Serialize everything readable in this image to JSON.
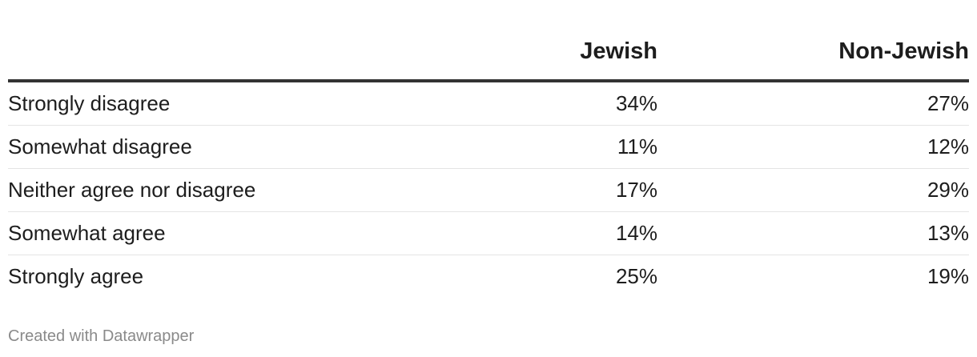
{
  "chart_data": {
    "type": "table",
    "columns": [
      "",
      "Jewish",
      "Non-Jewish"
    ],
    "rows": [
      {
        "label": "Strongly disagree",
        "jewish": "34%",
        "non_jewish": "27%"
      },
      {
        "label": "Somewhat disagree",
        "jewish": "11%",
        "non_jewish": "12%"
      },
      {
        "label": "Neither agree nor disagree",
        "jewish": "17%",
        "non_jewish": "29%"
      },
      {
        "label": "Somewhat agree",
        "jewish": "14%",
        "non_jewish": "13%"
      },
      {
        "label": "Strongly agree",
        "jewish": "25%",
        "non_jewish": "19%"
      }
    ],
    "series": [
      {
        "name": "Jewish",
        "values": [
          34,
          11,
          17,
          14,
          25
        ]
      },
      {
        "name": "Non-Jewish",
        "values": [
          27,
          12,
          29,
          13,
          19
        ]
      }
    ],
    "unit": "%"
  },
  "footer": {
    "credit": "Created with Datawrapper"
  },
  "colors": {
    "text": "#1d1d1d",
    "header_rule": "#333333",
    "row_divider": "#e4e4e4",
    "credit": "#8a8a8a"
  }
}
